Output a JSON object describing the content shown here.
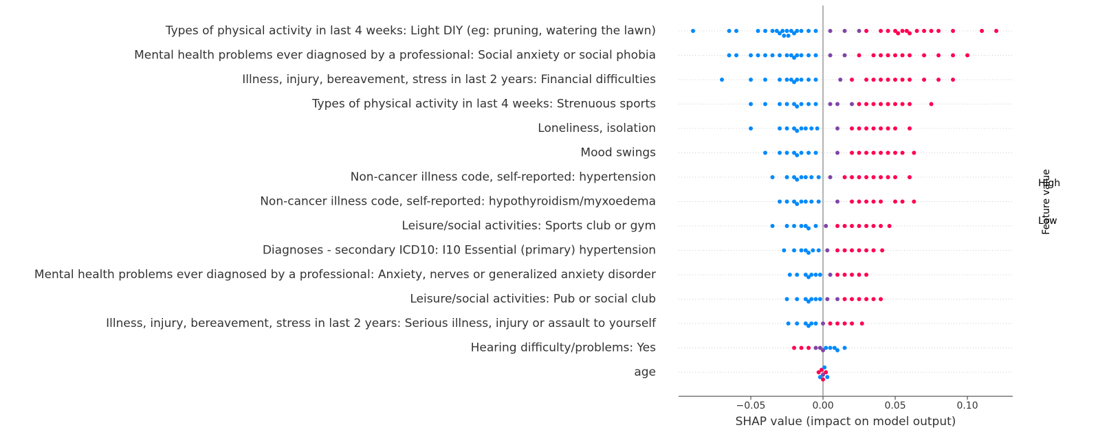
{
  "chart_data": {
    "type": "beeswarm",
    "xlabel": "SHAP value (impact on model output)",
    "colorbar_label": "Feature value",
    "colorbar_high": "High",
    "colorbar_low": "Low",
    "low_color": "#008afb",
    "high_color": "#ff0052",
    "categories": [
      "Types of physical activity in last 4 weeks: Light DIY (eg: pruning, watering the lawn)",
      "Mental health problems ever diagnosed by a professional: Social anxiety or social phobia",
      "Illness, injury, bereavement, stress in last 2 years: Financial difficulties",
      "Types of physical activity in last 4 weeks: Strenuous sports",
      "Loneliness, isolation",
      "Mood swings",
      "Non-cancer illness code, self-reported: hypertension",
      "Non-cancer illness code, self-reported: hypothyroidism/myxoedema",
      "Leisure/social activities: Sports club or gym",
      "Diagnoses - secondary ICD10: I10 Essential (primary) hypertension",
      "Mental health problems ever diagnosed by a professional: Anxiety, nerves or generalized anxiety disorder",
      "Leisure/social activities: Pub or social club",
      "Illness, injury, bereavement, stress in last 2 years: Serious illness, injury or assault to yourself",
      "Hearing difficulty/problems: Yes",
      "age"
    ],
    "values": [
      [
        -0.09,
        -0.065,
        -0.06,
        -0.045,
        -0.04,
        -0.035,
        -0.032,
        -0.03,
        -0.028,
        -0.027,
        -0.025,
        -0.024,
        -0.022,
        -0.02,
        -0.018,
        -0.015,
        -0.01,
        -0.005,
        0.005,
        0.015,
        0.025,
        0.03,
        0.04,
        0.045,
        0.05,
        0.052,
        0.055,
        0.058,
        0.06,
        0.065,
        0.07,
        0.075,
        0.08,
        0.09,
        0.11,
        0.12
      ],
      [
        -0.065,
        -0.06,
        -0.05,
        -0.045,
        -0.04,
        -0.035,
        -0.03,
        -0.025,
        -0.022,
        -0.02,
        -0.018,
        -0.015,
        -0.01,
        -0.005,
        0.005,
        0.015,
        0.025,
        0.035,
        0.04,
        0.045,
        0.05,
        0.055,
        0.06,
        0.07,
        0.08,
        0.09,
        0.1
      ],
      [
        -0.07,
        -0.05,
        -0.04,
        -0.03,
        -0.025,
        -0.022,
        -0.02,
        -0.018,
        -0.015,
        -0.01,
        -0.005,
        0.012,
        0.02,
        0.03,
        0.035,
        0.04,
        0.045,
        0.05,
        0.055,
        0.06,
        0.07,
        0.08,
        0.09
      ],
      [
        -0.05,
        -0.04,
        -0.03,
        -0.025,
        -0.02,
        -0.018,
        -0.015,
        -0.01,
        -0.005,
        0.005,
        0.01,
        0.02,
        0.025,
        0.03,
        0.035,
        0.04,
        0.045,
        0.05,
        0.055,
        0.06,
        0.075
      ],
      [
        -0.05,
        -0.03,
        -0.025,
        -0.02,
        -0.018,
        -0.015,
        -0.012,
        -0.008,
        -0.004,
        0.01,
        0.02,
        0.025,
        0.03,
        0.035,
        0.04,
        0.045,
        0.05,
        0.06
      ],
      [
        -0.04,
        -0.03,
        -0.025,
        -0.02,
        -0.018,
        -0.015,
        -0.01,
        -0.005,
        0.01,
        0.02,
        0.025,
        0.03,
        0.035,
        0.04,
        0.045,
        0.05,
        0.055,
        0.063
      ],
      [
        -0.035,
        -0.025,
        -0.02,
        -0.018,
        -0.015,
        -0.012,
        -0.008,
        -0.003,
        0.005,
        0.015,
        0.02,
        0.025,
        0.03,
        0.035,
        0.04,
        0.045,
        0.05,
        0.06
      ],
      [
        -0.03,
        -0.025,
        -0.02,
        -0.018,
        -0.015,
        -0.012,
        -0.008,
        -0.003,
        0.01,
        0.02,
        0.025,
        0.03,
        0.035,
        0.04,
        0.05,
        0.055,
        0.063
      ],
      [
        -0.035,
        -0.025,
        -0.02,
        -0.015,
        -0.012,
        -0.01,
        -0.005,
        0.002,
        0.01,
        0.015,
        0.02,
        0.025,
        0.03,
        0.035,
        0.04,
        0.046
      ],
      [
        -0.027,
        -0.02,
        -0.015,
        -0.012,
        -0.01,
        -0.007,
        -0.003,
        0.003,
        0.01,
        0.015,
        0.02,
        0.025,
        0.03,
        0.035,
        0.041
      ],
      [
        -0.023,
        -0.018,
        -0.012,
        -0.01,
        -0.008,
        -0.005,
        -0.002,
        0.005,
        0.01,
        0.015,
        0.02,
        0.025,
        0.03
      ],
      [
        -0.025,
        -0.018,
        -0.012,
        -0.01,
        -0.008,
        -0.005,
        -0.002,
        0.003,
        0.01,
        0.015,
        0.02,
        0.025,
        0.03,
        0.035,
        0.04
      ],
      [
        -0.024,
        -0.018,
        -0.012,
        -0.01,
        -0.008,
        -0.005,
        0.0,
        0.005,
        0.01,
        0.015,
        0.02,
        0.027
      ],
      [
        -0.02,
        -0.015,
        -0.01,
        -0.005,
        -0.002,
        0.0,
        0.002,
        0.005,
        0.008,
        0.01,
        0.015
      ],
      [
        -0.003,
        -0.002,
        -0.001,
        0.0,
        0.0,
        0.001,
        0.002,
        0.003
      ]
    ],
    "feature_values": [
      [
        0,
        0,
        0,
        0,
        0,
        0,
        0,
        0,
        0,
        0,
        0,
        0,
        0,
        0,
        0,
        0,
        0,
        0,
        0.5,
        0.5,
        0.5,
        1,
        1,
        1,
        1,
        1,
        1,
        1,
        1,
        1,
        1,
        1,
        1,
        1,
        1,
        1
      ],
      [
        0,
        0,
        0,
        0,
        0,
        0,
        0,
        0,
        0,
        0,
        0,
        0,
        0,
        0,
        0.5,
        0.5,
        1,
        1,
        1,
        1,
        1,
        1,
        1,
        1,
        1,
        1,
        1
      ],
      [
        0,
        0,
        0,
        0,
        0,
        0,
        0,
        0,
        0,
        0,
        0,
        0.5,
        1,
        1,
        1,
        1,
        1,
        1,
        1,
        1,
        1,
        1,
        1
      ],
      [
        0,
        0,
        0,
        0,
        0,
        0,
        0,
        0,
        0,
        0.5,
        0.5,
        0.5,
        1,
        1,
        1,
        1,
        1,
        1,
        1,
        1,
        1
      ],
      [
        0,
        0,
        0,
        0,
        0,
        0,
        0,
        0,
        0,
        0.5,
        1,
        1,
        1,
        1,
        1,
        1,
        1,
        1
      ],
      [
        0,
        0,
        0,
        0,
        0,
        0,
        0,
        0,
        0.5,
        1,
        1,
        1,
        1,
        1,
        1,
        1,
        1,
        1
      ],
      [
        0,
        0,
        0,
        0,
        0,
        0,
        0,
        0,
        0.5,
        1,
        1,
        1,
        1,
        1,
        1,
        1,
        1,
        1
      ],
      [
        0,
        0,
        0,
        0,
        0,
        0,
        0,
        0,
        0.5,
        1,
        1,
        1,
        1,
        1,
        1,
        1,
        1
      ],
      [
        0,
        0,
        0,
        0,
        0,
        0,
        0,
        0.5,
        1,
        1,
        1,
        1,
        1,
        1,
        1,
        1
      ],
      [
        0,
        0,
        0,
        0,
        0,
        0,
        0,
        0.5,
        1,
        1,
        1,
        1,
        1,
        1,
        1
      ],
      [
        0,
        0,
        0,
        0,
        0,
        0,
        0,
        0.5,
        1,
        1,
        1,
        1,
        1
      ],
      [
        0,
        0,
        0,
        0,
        0,
        0,
        0,
        0.5,
        0.5,
        1,
        1,
        1,
        1,
        1,
        1
      ],
      [
        0,
        0,
        0,
        0,
        0,
        0,
        0.5,
        1,
        1,
        1,
        1,
        1
      ],
      [
        1,
        1,
        1,
        0.5,
        0.5,
        0.5,
        0,
        0,
        0,
        0,
        0
      ],
      [
        1,
        0,
        1,
        0.5,
        1,
        0,
        1,
        0
      ]
    ],
    "xlim": [
      -0.1,
      0.1314
    ],
    "xticks": [
      {
        "value": -0.05,
        "label": "−0.05"
      },
      {
        "value": 0,
        "label": "0.00"
      },
      {
        "value": 0.05,
        "label": "0.05"
      },
      {
        "value": 0.1,
        "label": "0.10"
      }
    ]
  }
}
